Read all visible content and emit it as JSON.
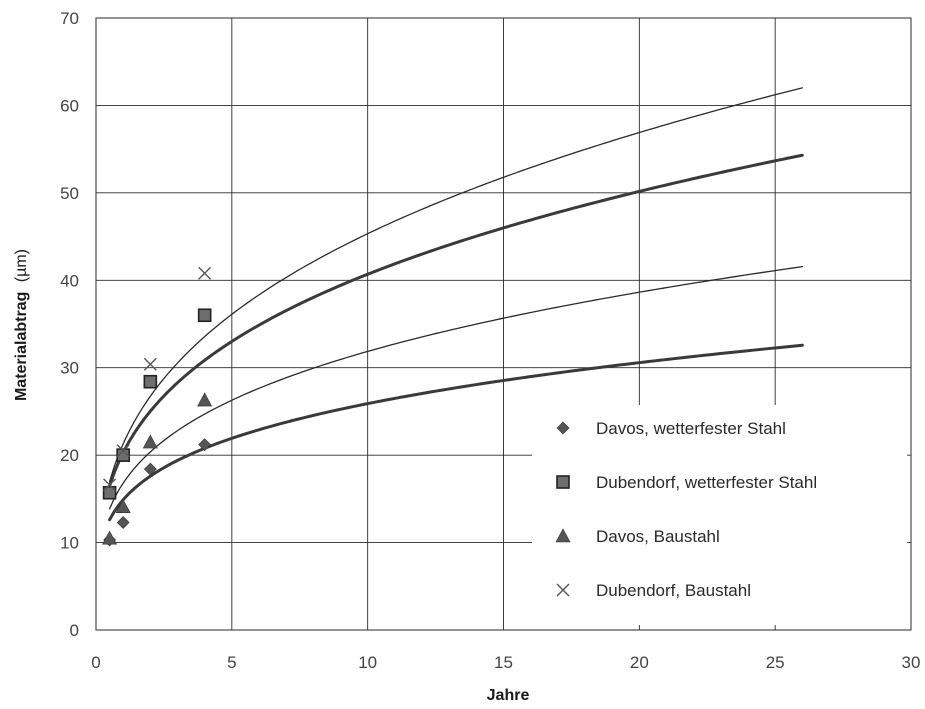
{
  "chart_data": {
    "type": "scatter",
    "title": "",
    "xlabel": "Jahre",
    "ylabel": "Materialabtrag",
    "ylabel_unit": "(µm)",
    "xlim": [
      0,
      30
    ],
    "ylim": [
      0,
      70
    ],
    "x_ticks": [
      "0",
      "5",
      "10",
      "15",
      "20",
      "25",
      "30"
    ],
    "y_ticks": [
      "0",
      "10",
      "20",
      "30",
      "40",
      "50",
      "60",
      "70"
    ],
    "grid": true,
    "legend_position": "bottom-right",
    "series": [
      {
        "name": "Davos, wetterfester Stahl",
        "marker": "diamond",
        "points": [
          [
            0.5,
            10.3
          ],
          [
            1,
            12.3
          ],
          [
            2,
            18.4
          ],
          [
            4,
            21.2
          ]
        ],
        "fit": {
          "a": 14.9,
          "b": 0.24,
          "x_from": 0.5,
          "x_to": 26,
          "weight": "bold"
        }
      },
      {
        "name": "Dubendorf, wetterfester Stahl",
        "marker": "square",
        "points": [
          [
            0.5,
            15.7
          ],
          [
            1,
            20.0
          ],
          [
            2,
            28.4
          ],
          [
            4,
            36.0
          ]
        ],
        "fit": {
          "a": 20.3,
          "b": 0.302,
          "x_from": 0.5,
          "x_to": 26,
          "weight": "bold"
        }
      },
      {
        "name": "Davos, Baustahl",
        "marker": "triangle",
        "points": [
          [
            0.5,
            10.5
          ],
          [
            1,
            14.1
          ],
          [
            2,
            21.5
          ],
          [
            4,
            26.3
          ]
        ],
        "fit": {
          "a": 16.8,
          "b": 0.278,
          "x_from": 0.5,
          "x_to": 26,
          "weight": "thin"
        }
      },
      {
        "name": "Dubendorf, Baustahl",
        "marker": "cross",
        "points": [
          [
            0.5,
            16.6
          ],
          [
            1,
            20.5
          ],
          [
            2,
            30.4
          ],
          [
            4,
            40.8
          ]
        ],
        "fit": {
          "a": 21.3,
          "b": 0.328,
          "x_from": 0.5,
          "x_to": 26,
          "weight": "thin"
        }
      }
    ]
  }
}
